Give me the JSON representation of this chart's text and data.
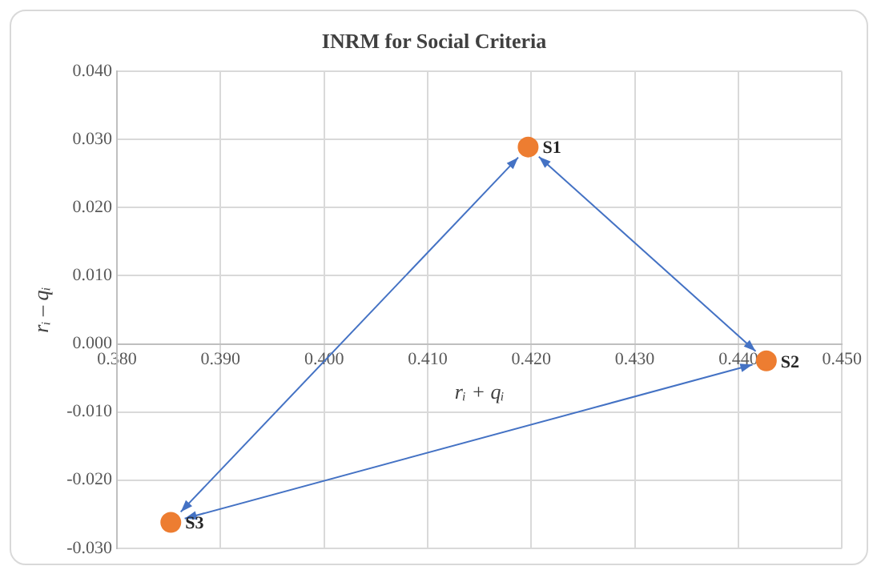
{
  "chart_data": {
    "type": "scatter",
    "title": "INRM for Social Criteria",
    "xlabel": "rᵢ + qᵢ",
    "ylabel": "rᵢ – qᵢ",
    "series": [
      {
        "name": "S1",
        "color": "#ed7d31",
        "x": [
          0.4197
        ],
        "values": [
          0.0289
        ]
      },
      {
        "name": "S2",
        "color": "#ed7d31",
        "x": [
          0.4427
        ],
        "values": [
          -0.0025
        ]
      },
      {
        "name": "S3",
        "color": "#ed7d31",
        "x": [
          0.3852
        ],
        "values": [
          -0.0262
        ]
      }
    ],
    "xlim": [
      0.38,
      0.45
    ],
    "xticks": [
      {
        "value": 0.38,
        "label": "0.380"
      },
      {
        "value": 0.39,
        "label": "0.390"
      },
      {
        "value": 0.4,
        "label": "0.400"
      },
      {
        "value": 0.41,
        "label": "0.410"
      },
      {
        "value": 0.42,
        "label": "0.420"
      },
      {
        "value": 0.43,
        "label": "0.430"
      },
      {
        "value": 0.44,
        "label": "0.440"
      },
      {
        "value": 0.45,
        "label": "0.450"
      }
    ],
    "ylim": [
      -0.03,
      0.04
    ],
    "yticks": [
      {
        "value": -0.03,
        "label": "-0.030"
      },
      {
        "value": -0.02,
        "label": "-0.020"
      },
      {
        "value": -0.01,
        "label": "-0.010"
      },
      {
        "value": 0,
        "label": "0.000"
      },
      {
        "value": 0.01,
        "label": "0.010"
      },
      {
        "value": 0.02,
        "label": "0.020"
      },
      {
        "value": 0.03,
        "label": "0.030"
      },
      {
        "value": 0.04,
        "label": "0.040"
      }
    ],
    "grid": true,
    "legend": false,
    "marker": "circle"
  }
}
